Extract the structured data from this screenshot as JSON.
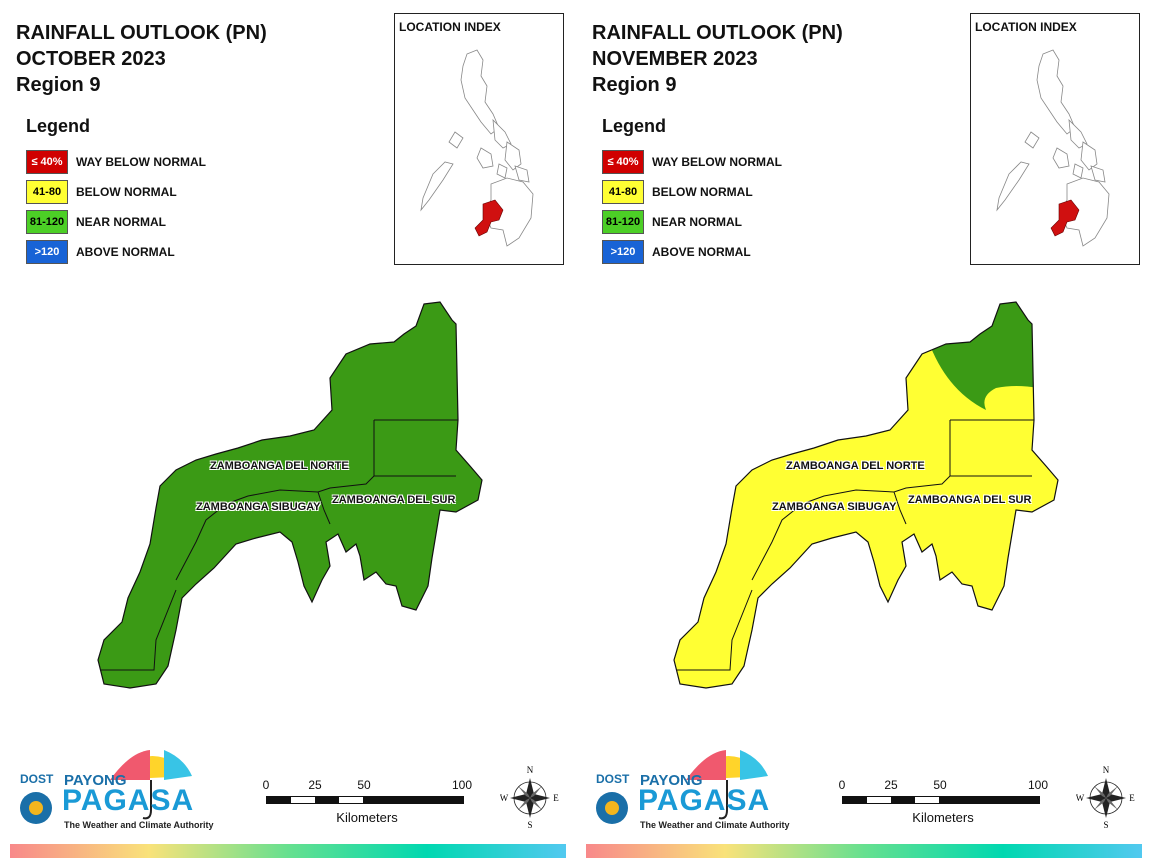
{
  "maps": [
    {
      "title_line1": "RAINFALL OUTLOOK (PN)",
      "title_line2": "OCTOBER 2023",
      "title_line3": "Region 9",
      "region_fill": "#3b9a15",
      "north_fill": "#3b9a15"
    },
    {
      "title_line1": "RAINFALL OUTLOOK (PN)",
      "title_line2": "NOVEMBER 2023",
      "title_line3": "Region 9",
      "region_fill": "#ffff33",
      "north_fill": "#3b9a15"
    }
  ],
  "legend": {
    "title": "Legend",
    "items": [
      {
        "range": "≤ 40%",
        "label": "WAY BELOW NORMAL",
        "color": "#d00000",
        "text_color": "#ffffff"
      },
      {
        "range": "41-80",
        "label": "BELOW NORMAL",
        "color": "#ffff33",
        "text_color": "#000000"
      },
      {
        "range": "81-120",
        "label": "NEAR NORMAL",
        "color": "#4ccf26",
        "text_color": "#000000"
      },
      {
        "range": ">120",
        "label": "ABOVE NORMAL",
        "color": "#1863d6",
        "text_color": "#ffffff"
      }
    ]
  },
  "inset": {
    "title": "LOCATION INDEX",
    "highlight_color": "#d01010"
  },
  "provinces": [
    "ZAMBOANGA DEL NORTE",
    "ZAMBOANGA SIBUGAY",
    "ZAMBOANGA DEL SUR"
  ],
  "scale": {
    "ticks": [
      "0",
      "25",
      "50",
      "100"
    ],
    "unit": "Kilometers"
  },
  "compass": {
    "n": "N",
    "s": "S",
    "e": "E",
    "w": "W"
  },
  "logo": {
    "dost": "DOST",
    "payong": "PAYONG",
    "pagasa": "PAGASA",
    "tagline": "The Weather and Climate Authority"
  }
}
